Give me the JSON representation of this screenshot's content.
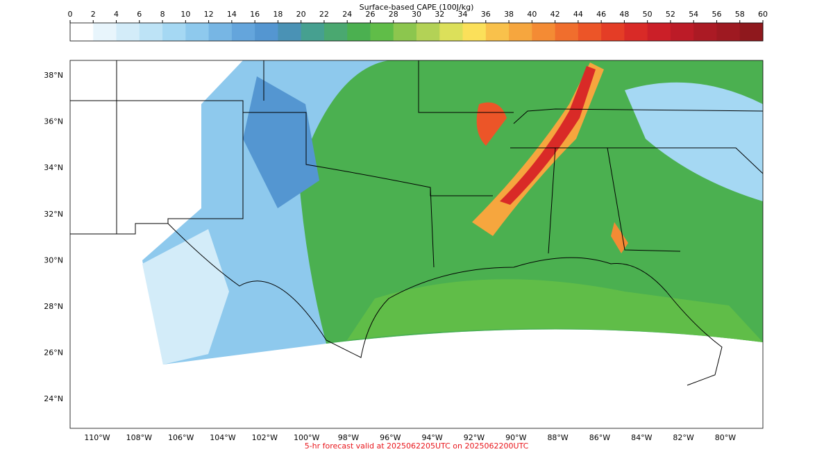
{
  "colorbar": {
    "title": "Surface-based CAPE (100J/kg)",
    "ticks": [
      "0",
      "2",
      "4",
      "6",
      "8",
      "10",
      "12",
      "14",
      "16",
      "18",
      "20",
      "22",
      "24",
      "26",
      "28",
      "30",
      "32",
      "34",
      "36",
      "38",
      "40",
      "42",
      "44",
      "46",
      "48",
      "50",
      "52",
      "54",
      "56",
      "58",
      "60"
    ],
    "colors": [
      "#ffffff",
      "#e8f5fc",
      "#d3ecf9",
      "#bde3f6",
      "#a5d8f3",
      "#8ec9ed",
      "#77b6e4",
      "#64a5dc",
      "#5496d1",
      "#4a92b5",
      "#46a090",
      "#4aa870",
      "#4bb050",
      "#60bd48",
      "#8cc64e",
      "#b3d256",
      "#dce05a",
      "#fbe05a",
      "#f9c14b",
      "#f6a63e",
      "#f48b34",
      "#f06e2d",
      "#ec5528",
      "#e43d26",
      "#d92a27",
      "#cb1f28",
      "#bc1b27",
      "#ab1a24",
      "#9e1921",
      "#8f181d"
    ]
  },
  "map": {
    "lat_labels": [
      "38°N",
      "36°N",
      "34°N",
      "32°N",
      "30°N",
      "28°N",
      "26°N",
      "24°N"
    ],
    "lon_labels": [
      "110°W",
      "108°W",
      "106°W",
      "104°W",
      "102°W",
      "100°W",
      "98°W",
      "96°W",
      "94°W",
      "92°W",
      "90°W",
      "88°W",
      "86°W",
      "84°W",
      "82°W",
      "80°W"
    ]
  },
  "footer": "5-hr forecast valid at 2025062205UTC on 2025062200UTC"
}
